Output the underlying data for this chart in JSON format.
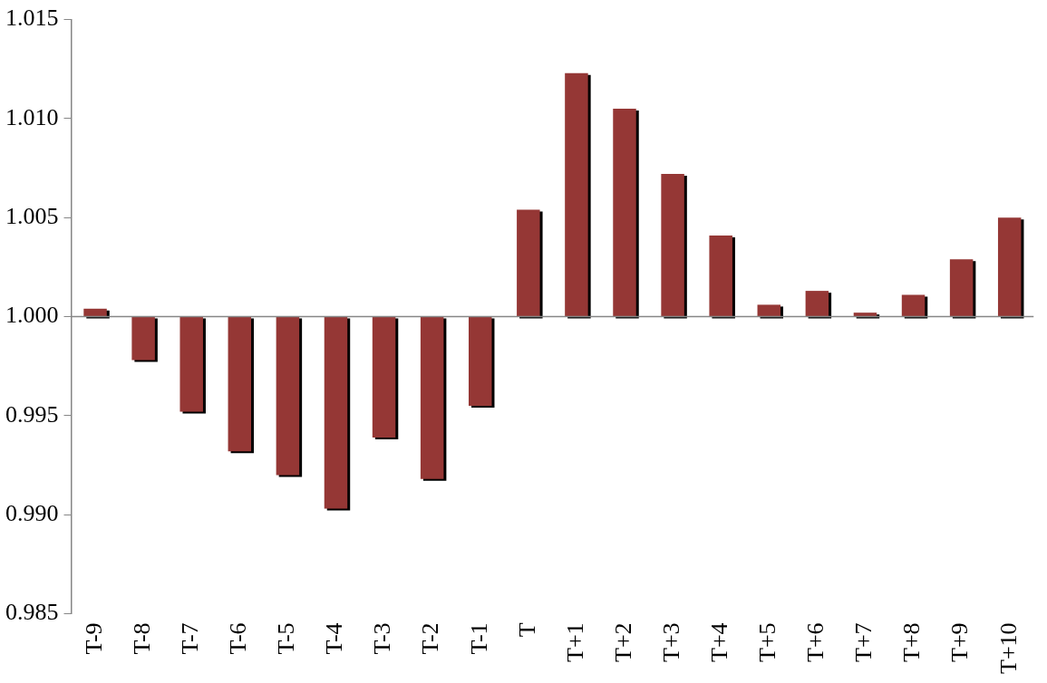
{
  "chart_data": {
    "type": "bar",
    "categories": [
      "T-9",
      "T-8",
      "T-7",
      "T-6",
      "T-5",
      "T-4",
      "T-3",
      "T-2",
      "T-1",
      "T",
      "T+1",
      "T+2",
      "T+3",
      "T+4",
      "T+5",
      "T+6",
      "T+7",
      "T+8",
      "T+9",
      "T+10"
    ],
    "base": [
      1,
      1,
      1,
      1,
      1,
      1,
      1,
      1,
      1,
      1,
      1,
      1,
      1,
      1,
      1,
      1,
      1,
      1,
      1,
      1
    ],
    "values": [
      0.0004,
      -0.0022,
      -0.0048,
      -0.0068,
      -0.008,
      -0.0097,
      -0.0061,
      -0.0082,
      -0.0045,
      0.0054,
      0.0123,
      0.0105,
      0.0072,
      0.0041,
      0.0006,
      0.0013,
      0.0002,
      0.0011,
      0.0029,
      0.005
    ],
    "color": "#953735",
    "ylim": [
      0.985,
      1.015
    ],
    "yticks": [
      {
        "value": 0.985,
        "label": "0.985"
      },
      {
        "value": 0.99,
        "label": "0.990"
      },
      {
        "value": 0.995,
        "label": "0.995"
      },
      {
        "value": 1,
        "label": "1.000"
      },
      {
        "value": 1.005,
        "label": "1.005"
      },
      {
        "value": 1.01,
        "label": "1.010"
      },
      {
        "value": 1.015,
        "label": "1.015"
      }
    ],
    "legend": false
  }
}
